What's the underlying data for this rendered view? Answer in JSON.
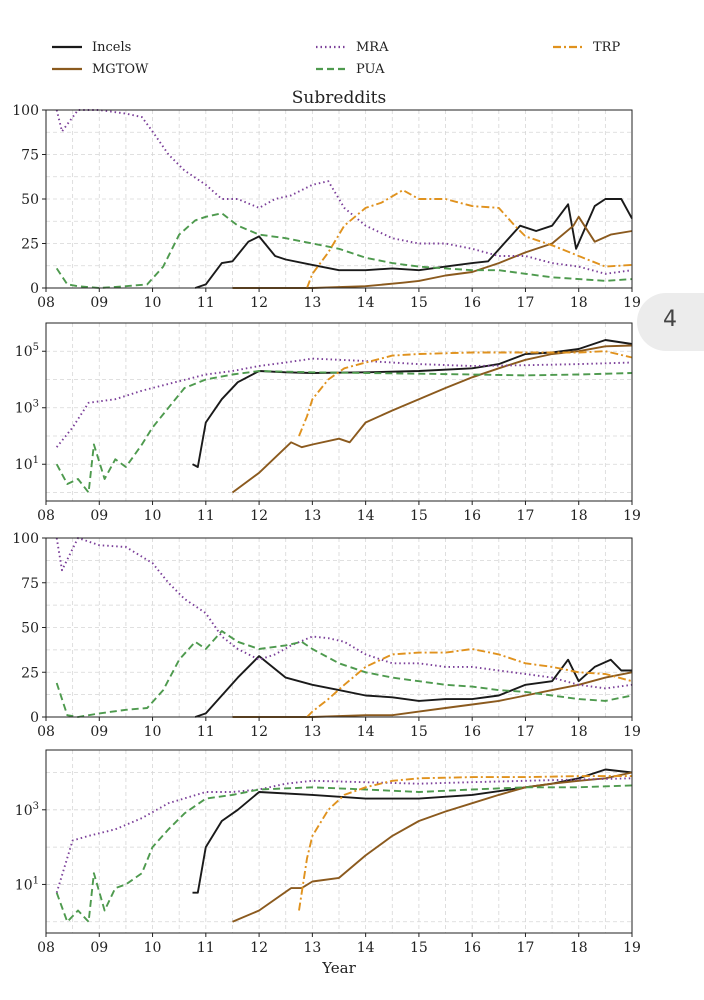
{
  "page_tab": {
    "label": "4"
  },
  "figure": {
    "title": "Subreddits",
    "xlabel": "Year",
    "xticks": [
      "08",
      "09",
      "10",
      "11",
      "12",
      "13",
      "14",
      "15",
      "16",
      "17",
      "18",
      "19"
    ],
    "legend": [
      {
        "name": "Incels",
        "color": "#1a1a1a",
        "dash": "solid"
      },
      {
        "name": "MGTOW",
        "color": "#8b5a1e",
        "dash": "solid"
      },
      {
        "name": "MRA",
        "color": "#7b3f99",
        "dash": "dotted"
      },
      {
        "name": "PUA",
        "color": "#4e9a4e",
        "dash": "dashed"
      },
      {
        "name": "TRP",
        "color": "#e0921e",
        "dash": "dashdot"
      }
    ]
  },
  "chart_data": [
    {
      "type": "line",
      "scale": "linear",
      "xlim": [
        2008,
        2019
      ],
      "ylim": [
        0,
        100
      ],
      "yticks": [
        "0",
        "25",
        "50",
        "75",
        "100"
      ],
      "grid": true,
      "series": [
        {
          "name": "Incels",
          "x": [
            2010.8,
            2011,
            2011.3,
            2011.5,
            2011.8,
            2012,
            2012.3,
            2012.5,
            2013,
            2013.5,
            2014,
            2014.5,
            2015,
            2015.5,
            2016,
            2016.3,
            2016.6,
            2016.9,
            2017.2,
            2017.5,
            2017.8,
            2017.95,
            2018.3,
            2018.5,
            2018.8,
            2019
          ],
          "values": [
            0,
            2,
            14,
            15,
            26,
            29,
            18,
            16,
            13,
            10,
            10,
            11,
            10,
            12,
            14,
            15,
            25,
            35,
            32,
            35,
            47,
            22,
            46,
            50,
            50,
            39
          ]
        },
        {
          "name": "MGTOW",
          "x": [
            2011.5,
            2012,
            2012.5,
            2013,
            2014,
            2014.7,
            2015,
            2015.5,
            2016,
            2016.5,
            2017,
            2017.5,
            2017.9,
            2018,
            2018.3,
            2018.6,
            2019
          ],
          "values": [
            0,
            0,
            0,
            0,
            1,
            3,
            4,
            7,
            9,
            14,
            20,
            25,
            35,
            40,
            26,
            30,
            32
          ]
        },
        {
          "name": "MRA",
          "x": [
            2008.2,
            2008.3,
            2008.6,
            2009,
            2009.5,
            2009.8,
            2010,
            2010.3,
            2010.6,
            2011,
            2011.3,
            2011.6,
            2012,
            2012.3,
            2012.6,
            2013,
            2013.3,
            2013.6,
            2014,
            2014.5,
            2015,
            2015.5,
            2016,
            2016.5,
            2017,
            2017.5,
            2018,
            2018.5,
            2019
          ],
          "values": [
            100,
            88,
            100,
            100,
            98,
            96,
            88,
            75,
            66,
            58,
            50,
            50,
            45,
            50,
            52,
            58,
            60,
            45,
            35,
            28,
            25,
            25,
            22,
            18,
            18,
            14,
            12,
            8,
            10
          ]
        },
        {
          "name": "PUA",
          "x": [
            2008.2,
            2008.4,
            2008.6,
            2009,
            2009.5,
            2009.9,
            2010.2,
            2010.5,
            2010.8,
            2011,
            2011.3,
            2011.6,
            2012,
            2012.5,
            2013,
            2013.5,
            2014,
            2014.5,
            2015,
            2015.5,
            2016,
            2016.5,
            2017,
            2017.5,
            2018,
            2018.5,
            2019
          ],
          "values": [
            11,
            2,
            1,
            0,
            1,
            2,
            12,
            30,
            38,
            40,
            42,
            35,
            30,
            28,
            25,
            22,
            17,
            14,
            12,
            11,
            10,
            10,
            8,
            6,
            5,
            4,
            5
          ]
        },
        {
          "name": "TRP",
          "x": [
            2012.9,
            2013,
            2013.3,
            2013.6,
            2014,
            2014.3,
            2014.7,
            2015,
            2015.5,
            2016,
            2016.5,
            2016.8,
            2017,
            2017.5,
            2018,
            2018.5,
            2019
          ],
          "values": [
            0,
            8,
            20,
            35,
            45,
            48,
            55,
            50,
            50,
            46,
            45,
            35,
            29,
            24,
            18,
            12,
            13
          ]
        }
      ]
    },
    {
      "type": "line",
      "scale": "log",
      "xlim": [
        2008,
        2019
      ],
      "ylim": [
        0.5,
        1000000
      ],
      "yticks": [
        {
          "base": "10",
          "exp": "1",
          "v": 10
        },
        {
          "base": "10",
          "exp": "3",
          "v": 1000
        },
        {
          "base": "10",
          "exp": "5",
          "v": 100000
        }
      ],
      "grid": true,
      "series": [
        {
          "name": "Incels",
          "x": [
            2010.75,
            2010.85,
            2011,
            2011.3,
            2011.6,
            2012,
            2012.5,
            2013,
            2014,
            2015,
            2016,
            2016.5,
            2017,
            2017.5,
            2018,
            2018.5,
            2019
          ],
          "values": [
            10,
            8,
            300,
            2000,
            8000,
            20000,
            18000,
            17000,
            18000,
            20000,
            25000,
            35000,
            80000,
            90000,
            120000,
            250000,
            180000
          ]
        },
        {
          "name": "MGTOW",
          "x": [
            2011.5,
            2012,
            2012.6,
            2012.8,
            2013,
            2013.5,
            2013.7,
            2014,
            2014.5,
            2015,
            2015.5,
            2016,
            2016.5,
            2017,
            2017.5,
            2018,
            2018.5,
            2019
          ],
          "values": [
            1,
            5,
            60,
            40,
            50,
            80,
            60,
            300,
            800,
            2000,
            5000,
            12000,
            25000,
            50000,
            80000,
            100000,
            150000,
            160000
          ]
        },
        {
          "name": "MRA",
          "x": [
            2008.2,
            2008.5,
            2008.8,
            2009.3,
            2009.8,
            2010.3,
            2011,
            2011.5,
            2012,
            2012.5,
            2013,
            2014,
            2015,
            2016,
            2017,
            2018,
            2019
          ],
          "values": [
            40,
            200,
            1500,
            2000,
            4000,
            7000,
            15000,
            20000,
            30000,
            40000,
            55000,
            45000,
            35000,
            30000,
            32000,
            35000,
            40000
          ]
        },
        {
          "name": "PUA",
          "x": [
            2008.2,
            2008.4,
            2008.6,
            2008.8,
            2008.9,
            2009.1,
            2009.3,
            2009.5,
            2009.8,
            2010,
            2010.3,
            2010.6,
            2011,
            2011.5,
            2012,
            2013,
            2014,
            2015,
            2016,
            2017,
            2018,
            2019
          ],
          "values": [
            10,
            2,
            3,
            1,
            50,
            3,
            15,
            8,
            50,
            200,
            1000,
            5000,
            10000,
            15000,
            20000,
            18000,
            17000,
            16000,
            15000,
            14000,
            15000,
            17000
          ]
        },
        {
          "name": "TRP",
          "x": [
            2012.75,
            2012.9,
            2013,
            2013.3,
            2013.6,
            2014,
            2014.5,
            2015,
            2016,
            2017,
            2018,
            2018.5,
            2019
          ],
          "values": [
            100,
            500,
            2000,
            10000,
            25000,
            40000,
            70000,
            80000,
            90000,
            90000,
            90000,
            100000,
            60000
          ]
        }
      ]
    },
    {
      "type": "line",
      "scale": "linear",
      "xlim": [
        2008,
        2019
      ],
      "ylim": [
        0,
        100
      ],
      "yticks": [
        "0",
        "25",
        "50",
        "75",
        "100"
      ],
      "grid": true,
      "series": [
        {
          "name": "Incels",
          "x": [
            2010.8,
            2011,
            2011.3,
            2011.6,
            2012,
            2012.5,
            2013,
            2013.5,
            2014,
            2014.5,
            2015,
            2015.5,
            2016,
            2016.5,
            2017,
            2017.5,
            2017.8,
            2018,
            2018.3,
            2018.6,
            2018.8,
            2019
          ],
          "values": [
            0,
            2,
            12,
            22,
            34,
            22,
            18,
            15,
            12,
            11,
            9,
            10,
            10,
            12,
            18,
            20,
            32,
            20,
            28,
            32,
            26,
            26
          ]
        },
        {
          "name": "MGTOW",
          "x": [
            2011.5,
            2012,
            2013,
            2014,
            2014.5,
            2015,
            2015.5,
            2016,
            2016.5,
            2017,
            2017.5,
            2018,
            2018.5,
            2019
          ],
          "values": [
            0,
            0,
            0,
            1,
            1,
            3,
            5,
            7,
            9,
            12,
            15,
            18,
            22,
            25
          ]
        },
        {
          "name": "MRA",
          "x": [
            2008.2,
            2008.3,
            2008.6,
            2009,
            2009.5,
            2010,
            2010.3,
            2010.6,
            2011,
            2011.3,
            2011.6,
            2012,
            2012.3,
            2012.6,
            2013,
            2013.3,
            2013.6,
            2014,
            2014.5,
            2015,
            2015.5,
            2016,
            2016.5,
            2017,
            2017.5,
            2018,
            2018.5,
            2019
          ],
          "values": [
            100,
            82,
            100,
            96,
            95,
            86,
            75,
            66,
            58,
            45,
            38,
            32,
            35,
            40,
            45,
            44,
            42,
            35,
            30,
            30,
            28,
            28,
            26,
            24,
            22,
            18,
            16,
            18
          ]
        },
        {
          "name": "PUA",
          "x": [
            2008.2,
            2008.4,
            2008.6,
            2009,
            2009.5,
            2009.9,
            2010.2,
            2010.5,
            2010.8,
            2011,
            2011.3,
            2011.6,
            2012,
            2012.5,
            2012.8,
            2013,
            2013.5,
            2014,
            2014.5,
            2015,
            2015.5,
            2016,
            2016.5,
            2017,
            2017.5,
            2018,
            2018.5,
            2019
          ],
          "values": [
            19,
            1,
            0,
            2,
            4,
            5,
            15,
            32,
            42,
            38,
            48,
            42,
            38,
            40,
            42,
            38,
            30,
            25,
            22,
            20,
            18,
            17,
            15,
            14,
            12,
            10,
            9,
            12
          ]
        },
        {
          "name": "TRP",
          "x": [
            2012.9,
            2013,
            2013.3,
            2013.6,
            2014,
            2014.5,
            2015,
            2015.5,
            2016,
            2016.5,
            2017,
            2017.5,
            2018,
            2018.5,
            2019
          ],
          "values": [
            0,
            3,
            10,
            18,
            28,
            35,
            36,
            36,
            38,
            35,
            30,
            28,
            25,
            24,
            20
          ]
        }
      ]
    },
    {
      "type": "line",
      "scale": "log",
      "xlim": [
        2008,
        2019
      ],
      "ylim": [
        0.5,
        40000
      ],
      "yticks": [
        {
          "base": "10",
          "exp": "1",
          "v": 10
        },
        {
          "base": "10",
          "exp": "3",
          "v": 1000
        }
      ],
      "grid": true,
      "series": [
        {
          "name": "Incels",
          "x": [
            2010.75,
            2010.85,
            2011,
            2011.3,
            2011.6,
            2012,
            2013,
            2014,
            2015,
            2016,
            2017,
            2017.5,
            2018,
            2018.5,
            2019
          ],
          "values": [
            6,
            6,
            100,
            500,
            1000,
            3000,
            2500,
            2000,
            2000,
            2500,
            4000,
            5000,
            7000,
            12000,
            10000
          ]
        },
        {
          "name": "MGTOW",
          "x": [
            2011.5,
            2012,
            2012.6,
            2012.8,
            2013,
            2013.5,
            2014,
            2014.5,
            2015,
            2015.5,
            2016,
            2016.5,
            2017,
            2017.5,
            2018,
            2018.5,
            2019
          ],
          "values": [
            1,
            2,
            8,
            8,
            12,
            15,
            60,
            200,
            500,
            900,
            1500,
            2500,
            4000,
            5000,
            6000,
            7000,
            10000
          ]
        },
        {
          "name": "MRA",
          "x": [
            2008.2,
            2008.5,
            2008.8,
            2009.3,
            2009.8,
            2010.3,
            2011,
            2011.5,
            2012,
            2012.5,
            2013,
            2014,
            2015,
            2016,
            2017,
            2018,
            2019
          ],
          "values": [
            6,
            150,
            200,
            300,
            600,
            1500,
            3000,
            3000,
            3500,
            5000,
            6000,
            5500,
            5000,
            5500,
            6000,
            6500,
            7000
          ]
        },
        {
          "name": "PUA",
          "x": [
            2008.2,
            2008.4,
            2008.6,
            2008.8,
            2008.9,
            2009.1,
            2009.3,
            2009.5,
            2009.8,
            2010,
            2010.3,
            2010.6,
            2011,
            2011.5,
            2012,
            2013,
            2014,
            2015,
            2016,
            2017,
            2018,
            2019
          ],
          "values": [
            6,
            1,
            2,
            1,
            20,
            2,
            8,
            10,
            20,
            100,
            300,
            800,
            2000,
            2500,
            3500,
            4000,
            3500,
            3000,
            3500,
            4000,
            4000,
            4500
          ]
        },
        {
          "name": "TRP",
          "x": [
            2012.75,
            2012.9,
            2013,
            2013.3,
            2013.6,
            2014,
            2014.5,
            2015,
            2016,
            2017,
            2018,
            2019
          ],
          "values": [
            2,
            50,
            200,
            1000,
            2500,
            4000,
            6000,
            7000,
            7500,
            7500,
            8000,
            8000
          ]
        }
      ]
    }
  ]
}
